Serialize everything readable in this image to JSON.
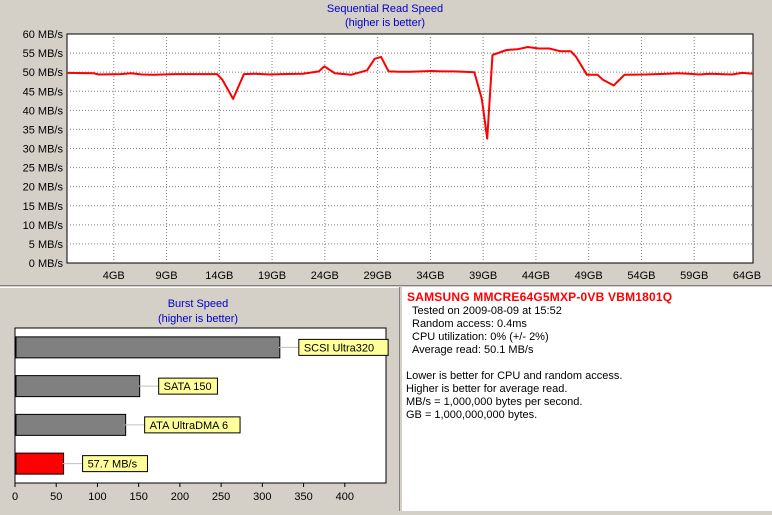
{
  "info": {
    "drive_title": "SAMSUNG MMCRE64G5MXP-0VB VBM1801Q",
    "tested_on": "Tested on 2009-08-09 at 15:52",
    "random_access": "Random access: 0.4ms",
    "cpu_utilization": "CPU utilization: 0% (+/- 2%)",
    "average_read": "Average read: 50.1 MB/s",
    "notes": [
      "Lower is better for CPU and random access.",
      "Higher is better for average read.",
      "MB/s = 1,000,000 bytes per second.",
      "GB = 1,000,000,000 bytes."
    ]
  },
  "colors": {
    "accent_red": "#ff0000",
    "title_blue": "#0000cc",
    "bar_gray": "#808080",
    "label_yellow": "#ffff99"
  },
  "chart_data": [
    {
      "type": "line",
      "title": "Sequential Read Speed",
      "subtitle": "(higher is better)",
      "xlabel": "",
      "ylabel": "",
      "y_unit": "MB/s",
      "ylim": [
        0,
        60
      ],
      "xlim": [
        0,
        64
      ],
      "y_ticks": [
        "0 MB/s",
        "5 MB/s",
        "10 MB/s",
        "15 MB/s",
        "20 MB/s",
        "25 MB/s",
        "30 MB/s",
        "35 MB/s",
        "40 MB/s",
        "45 MB/s",
        "50 MB/s",
        "55 MB/s",
        "60 MB/s"
      ],
      "x_ticks": [
        "4GB",
        "9GB",
        "14GB",
        "19GB",
        "24GB",
        "29GB",
        "34GB",
        "39GB",
        "44GB",
        "49GB",
        "54GB",
        "59GB",
        "64GB"
      ],
      "grid": true,
      "series": [
        {
          "color": "#ff0000",
          "x": [
            0,
            2.5,
            3,
            5,
            6,
            7,
            8,
            9,
            10,
            12,
            14,
            14.5,
            15.5,
            16.5,
            17.5,
            19,
            20,
            22,
            23.5,
            24,
            25,
            26.5,
            28,
            28.7,
            29.3,
            30,
            31,
            32,
            33,
            34,
            35,
            36,
            37,
            38,
            38.7,
            39.2,
            39.7,
            41,
            42,
            43,
            44,
            45,
            46,
            47,
            47.5,
            48.5,
            49.5,
            50,
            51,
            52,
            54,
            56,
            57,
            58,
            59,
            60,
            62,
            63,
            64
          ],
          "y": [
            49.8,
            49.7,
            49.4,
            49.5,
            49.7,
            49.4,
            49.3,
            49.4,
            49.5,
            49.5,
            49.5,
            48.0,
            43.0,
            49.5,
            49.6,
            49.4,
            49.5,
            49.6,
            50.2,
            51.5,
            49.7,
            49.3,
            50.5,
            53.5,
            54.0,
            50.2,
            50.1,
            50.1,
            50.2,
            50.3,
            50.2,
            50.2,
            50.1,
            50.0,
            43.0,
            32.6,
            54.5,
            55.8,
            56.0,
            56.6,
            56.2,
            56.2,
            55.5,
            55.5,
            54.0,
            49.3,
            49.3,
            48.0,
            46.5,
            49.3,
            49.4,
            49.6,
            49.7,
            49.6,
            49.4,
            49.6,
            49.4,
            49.8,
            49.6
          ]
        }
      ]
    },
    {
      "type": "bar",
      "orientation": "horizontal",
      "title": "Burst Speed",
      "subtitle": "(higher is better)",
      "xlabel": "",
      "ylabel": "",
      "xlim": [
        0,
        450
      ],
      "x_ticks": [
        "0",
        "50",
        "100",
        "150",
        "200",
        "250",
        "300",
        "350",
        "400"
      ],
      "categories": [
        "SCSI Ultra320",
        "SATA 150",
        "ATA UltraDMA 6",
        "57.7 MB/s"
      ],
      "values": [
        320,
        150,
        133,
        57.7
      ],
      "bar_colors": [
        "#808080",
        "#808080",
        "#808080",
        "#ff0000"
      ],
      "grid": false
    }
  ]
}
